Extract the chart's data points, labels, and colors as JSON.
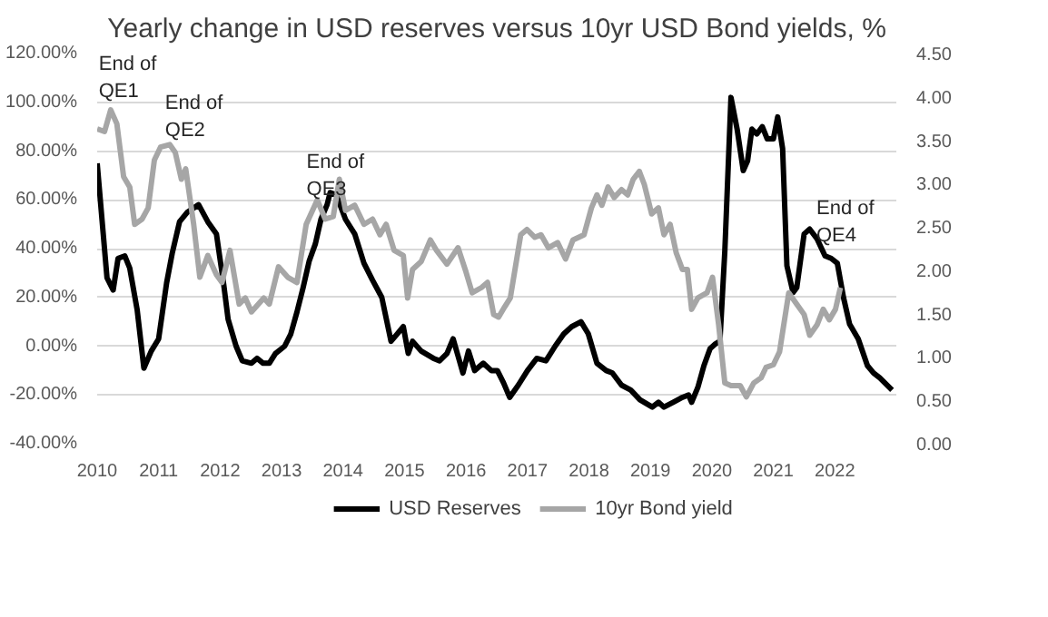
{
  "chart_data": {
    "type": "line",
    "title": "Yearly change in USD reserves versus 10yr USD Bond yields, %",
    "xlim": [
      2010,
      2023
    ],
    "xticks": [
      2010,
      2011,
      2012,
      2013,
      2014,
      2015,
      2016,
      2017,
      2018,
      2019,
      2020,
      2021,
      2022
    ],
    "ylim": [
      -40,
      120
    ],
    "yticks": [
      {
        "value": -40,
        "label": "-40.00%"
      },
      {
        "value": -20,
        "label": "-20.00%"
      },
      {
        "value": 0,
        "label": "0.00%"
      },
      {
        "value": 20,
        "label": "20.00%"
      },
      {
        "value": 40,
        "label": "40.00%"
      },
      {
        "value": 60,
        "label": "60.00%"
      },
      {
        "value": 80,
        "label": "80.00%"
      },
      {
        "value": 100,
        "label": "100.00%"
      },
      {
        "value": 120,
        "label": "120.00%"
      }
    ],
    "y2lim": [
      0,
      4.5
    ],
    "y2ticks": [
      {
        "value": 0,
        "label": "0.00"
      },
      {
        "value": 0.5,
        "label": "0.50"
      },
      {
        "value": 1,
        "label": "1.00"
      },
      {
        "value": 1.5,
        "label": "1.50"
      },
      {
        "value": 2,
        "label": "2.00"
      },
      {
        "value": 2.5,
        "label": "2.50"
      },
      {
        "value": 3,
        "label": "3.00"
      },
      {
        "value": 3.5,
        "label": "3.50"
      },
      {
        "value": 4,
        "label": "4.00"
      },
      {
        "value": 4.5,
        "label": "4.50"
      }
    ],
    "grid": "y",
    "legend": "bottom",
    "marker": "none",
    "line_style": "solid",
    "annotations": [
      "End of\nQE1",
      "End of\nQE2",
      "End of\nQE3",
      "End of\nQE4"
    ],
    "series": [
      {
        "name": "USD Reserves",
        "color": "#000000",
        "x": [
          2010.0,
          2010.16,
          2010.26,
          2010.34,
          2010.45,
          2010.53,
          2010.65,
          2010.76,
          2010.88,
          2011.0,
          2011.13,
          2011.22,
          2011.34,
          2011.47,
          2011.65,
          2011.8,
          2011.94,
          2012.06,
          2012.13,
          2012.26,
          2012.36,
          2012.51,
          2012.6,
          2012.7,
          2012.8,
          2012.9,
          2013.05,
          2013.15,
          2013.25,
          2013.35,
          2013.45,
          2013.55,
          2013.64,
          2013.74,
          2013.79,
          2013.89,
          2014.04,
          2014.19,
          2014.34,
          2014.48,
          2014.63,
          2014.78,
          2014.88,
          2014.98,
          2015.06,
          2015.13,
          2015.27,
          2015.47,
          2015.57,
          2015.69,
          2015.79,
          2015.87,
          2015.95,
          2016.04,
          2016.14,
          2016.28,
          2016.41,
          2016.51,
          2016.61,
          2016.71,
          2016.85,
          2017.0,
          2017.15,
          2017.3,
          2017.45,
          2017.59,
          2017.72,
          2017.87,
          2017.99,
          2018.13,
          2018.28,
          2018.38,
          2018.53,
          2018.68,
          2018.83,
          2019.03,
          2019.13,
          2019.22,
          2019.37,
          2019.52,
          2019.62,
          2019.67,
          2019.77,
          2019.87,
          2019.97,
          2020.06,
          2020.13,
          2020.21,
          2020.31,
          2020.41,
          2020.51,
          2020.58,
          2020.65,
          2020.73,
          2020.82,
          2020.9,
          2021.0,
          2021.07,
          2021.15,
          2021.22,
          2021.32,
          2021.38,
          2021.5,
          2021.59,
          2021.71,
          2021.84,
          2021.94,
          2022.04,
          2022.14,
          2022.24,
          2022.38,
          2022.53,
          2022.63,
          2022.73,
          2022.93
        ],
        "values": [
          75,
          28,
          23,
          36,
          37,
          32,
          15,
          -9,
          -2,
          3,
          26,
          38,
          51,
          55,
          58,
          51,
          46,
          25,
          11,
          0,
          -6,
          -7,
          -5,
          -7,
          -7,
          -3,
          0,
          5,
          14,
          24,
          35,
          42,
          52,
          58,
          63,
          62,
          52,
          46,
          34,
          27,
          20,
          2,
          5,
          8,
          -3,
          2,
          -2,
          -5,
          -6,
          -3,
          3,
          -4,
          -11,
          -2,
          -10,
          -7,
          -10,
          -10,
          -15,
          -21,
          -16,
          -10,
          -5,
          -6,
          0,
          5,
          8,
          10,
          5,
          -7,
          -10,
          -11,
          -16,
          -18,
          -22,
          -25,
          -23,
          -25,
          -23,
          -21,
          -20,
          -23,
          -17,
          -8,
          -1,
          1,
          2,
          39,
          102,
          89,
          72,
          76,
          89,
          87,
          90,
          85,
          85,
          94,
          81,
          33,
          22,
          24,
          46,
          48,
          44,
          37,
          36,
          34,
          20,
          9,
          3,
          -8,
          -11,
          -13,
          -18
        ]
      },
      {
        "name": "10yr Bond yield",
        "color": "#a6a6a6",
        "axis": "y2",
        "x": [
          2010.0,
          2010.12,
          2010.22,
          2010.32,
          2010.43,
          2010.53,
          2010.61,
          2010.73,
          2010.83,
          2010.93,
          2011.03,
          2011.18,
          2011.27,
          2011.37,
          2011.44,
          2011.57,
          2011.67,
          2011.8,
          2011.94,
          2012.03,
          2012.16,
          2012.31,
          2012.41,
          2012.51,
          2012.71,
          2012.8,
          2012.95,
          2013.1,
          2013.25,
          2013.4,
          2013.58,
          2013.71,
          2013.84,
          2013.94,
          2014.04,
          2014.19,
          2014.34,
          2014.48,
          2014.6,
          2014.7,
          2014.83,
          2014.98,
          2015.05,
          2015.13,
          2015.27,
          2015.42,
          2015.52,
          2015.69,
          2015.87,
          2016.0,
          2016.1,
          2016.25,
          2016.35,
          2016.45,
          2016.53,
          2016.63,
          2016.72,
          2016.89,
          2016.99,
          2017.12,
          2017.22,
          2017.34,
          2017.49,
          2017.62,
          2017.74,
          2017.92,
          2018.04,
          2018.13,
          2018.21,
          2018.31,
          2018.41,
          2018.53,
          2018.63,
          2018.72,
          2018.82,
          2018.9,
          2019.02,
          2019.13,
          2019.22,
          2019.32,
          2019.42,
          2019.52,
          2019.6,
          2019.67,
          2019.77,
          2019.92,
          2020.01,
          2020.11,
          2020.21,
          2020.31,
          2020.46,
          2020.56,
          2020.68,
          2020.8,
          2020.88,
          2021.0,
          2021.1,
          2021.25,
          2021.38,
          2021.5,
          2021.59,
          2021.71,
          2021.81,
          2021.91,
          2022.01,
          2022.09
        ],
        "values": [
          3.63,
          3.6,
          3.85,
          3.69,
          3.08,
          2.96,
          2.53,
          2.59,
          2.72,
          3.27,
          3.42,
          3.45,
          3.36,
          3.05,
          3.17,
          2.53,
          1.92,
          2.17,
          1.95,
          1.86,
          2.23,
          1.61,
          1.68,
          1.52,
          1.68,
          1.61,
          2.04,
          1.92,
          1.86,
          2.53,
          2.81,
          2.59,
          2.62,
          3.05,
          2.69,
          2.75,
          2.53,
          2.59,
          2.41,
          2.53,
          2.23,
          2.17,
          1.68,
          2.01,
          2.1,
          2.35,
          2.23,
          2.07,
          2.26,
          1.98,
          1.74,
          1.8,
          1.86,
          1.49,
          1.46,
          1.58,
          1.68,
          2.41,
          2.47,
          2.38,
          2.41,
          2.26,
          2.32,
          2.13,
          2.35,
          2.41,
          2.72,
          2.87,
          2.75,
          2.96,
          2.84,
          2.93,
          2.87,
          3.05,
          3.14,
          2.99,
          2.65,
          2.72,
          2.41,
          2.53,
          2.2,
          2.01,
          2.01,
          1.55,
          1.68,
          1.74,
          1.92,
          1.37,
          0.7,
          0.67,
          0.67,
          0.54,
          0.7,
          0.76,
          0.88,
          0.91,
          1.06,
          1.74,
          1.61,
          1.49,
          1.25,
          1.37,
          1.55,
          1.43,
          1.55,
          1.8
        ]
      }
    ]
  }
}
